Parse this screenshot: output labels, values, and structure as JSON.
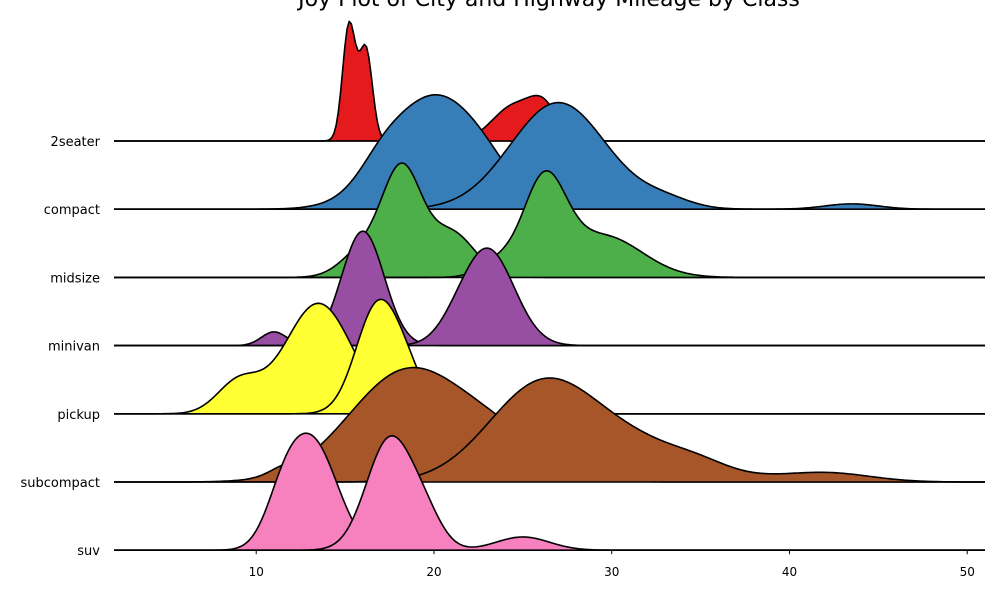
{
  "chart_data": {
    "type": "joyplot",
    "title": "Joy Plot of City and Highway Mileage by Class",
    "xlim": [
      2,
      51
    ],
    "xticks": [
      "10",
      "20",
      "30",
      "40",
      "50"
    ],
    "xtick_values": [
      10,
      20,
      30,
      40,
      50
    ],
    "grid": false,
    "rows": [
      {
        "label": "2seater",
        "color": "#e41a1c",
        "series": [
          {
            "name": "cty",
            "peak": 0.92,
            "components": [
              [
                15.2,
                0.35,
                1.0
              ],
              [
                16.2,
                0.35,
                0.75
              ],
              [
                15.7,
                0.55,
                0.3
              ]
            ]
          },
          {
            "name": "hwy",
            "peak": 0.35,
            "components": [
              [
                24.5,
                1.2,
                1.0
              ],
              [
                26.2,
                0.8,
                0.85
              ]
            ]
          }
        ]
      },
      {
        "label": "compact",
        "color": "#377eb8",
        "series": [
          {
            "name": "cty",
            "peak": 0.88,
            "components": [
              [
                20.0,
                2.6,
                1.0
              ],
              [
                17.0,
                1.2,
                0.12
              ],
              [
                23.0,
                1.5,
                0.12
              ]
            ]
          },
          {
            "name": "hwy",
            "peak": 0.82,
            "components": [
              [
                27.0,
                2.7,
                1.0
              ],
              [
                33.0,
                1.5,
                0.08
              ],
              [
                43.5,
                1.5,
                0.05
              ]
            ]
          }
        ]
      },
      {
        "label": "midsize",
        "color": "#4daf4a",
        "series": [
          {
            "name": "cty",
            "peak": 0.88,
            "components": [
              [
                18.2,
                1.1,
                1.0
              ],
              [
                21.0,
                1.3,
                0.42
              ],
              [
                16.0,
                1.2,
                0.25
              ]
            ]
          },
          {
            "name": "hwy",
            "peak": 0.82,
            "components": [
              [
                26.2,
                1.2,
                1.0
              ],
              [
                29.5,
                2.2,
                0.45
              ],
              [
                23.5,
                1.0,
                0.15
              ]
            ]
          }
        ]
      },
      {
        "label": "minivan",
        "color": "#984ea3",
        "series": [
          {
            "name": "cty",
            "peak": 0.88,
            "components": [
              [
                16.0,
                1.2,
                1.0
              ],
              [
                11.0,
                0.7,
                0.12
              ]
            ]
          },
          {
            "name": "hwy",
            "peak": 0.75,
            "components": [
              [
                23.0,
                1.5,
                1.0
              ],
              [
                21.0,
                0.9,
                0.05
              ]
            ]
          }
        ]
      },
      {
        "label": "pickup",
        "color": "#ffff33",
        "series": [
          {
            "name": "cty",
            "peak": 0.85,
            "components": [
              [
                13.5,
                1.9,
                1.0
              ],
              [
                9.0,
                1.2,
                0.28
              ]
            ]
          },
          {
            "name": "hwy",
            "peak": 0.88,
            "components": [
              [
                16.8,
                1.2,
                1.0
              ],
              [
                18.5,
                1.0,
                0.3
              ]
            ]
          }
        ]
      },
      {
        "label": "subcompact",
        "color": "#a65628",
        "series": [
          {
            "name": "cty",
            "peak": 0.88,
            "components": [
              [
                18.5,
                3.3,
                1.0
              ],
              [
                24.0,
                2.6,
                0.3
              ],
              [
                11.5,
                0.8,
                0.05
              ]
            ]
          },
          {
            "name": "hwy",
            "peak": 0.8,
            "components": [
              [
                26.0,
                3.0,
                1.0
              ],
              [
                31.5,
                3.5,
                0.38
              ],
              [
                42.0,
                2.5,
                0.1
              ],
              [
                35.0,
                1.5,
                0.05
              ]
            ]
          }
        ]
      },
      {
        "label": "suv",
        "color": "#f781bf",
        "series": [
          {
            "name": "cty",
            "peak": 0.9,
            "components": [
              [
                13.2,
                1.4,
                1.0
              ],
              [
                11.5,
                1.0,
                0.35
              ]
            ]
          },
          {
            "name": "hwy",
            "peak": 0.88,
            "components": [
              [
                17.5,
                1.3,
                1.0
              ],
              [
                19.5,
                1.0,
                0.25
              ],
              [
                25.0,
                1.5,
                0.12
              ]
            ]
          }
        ]
      }
    ]
  }
}
